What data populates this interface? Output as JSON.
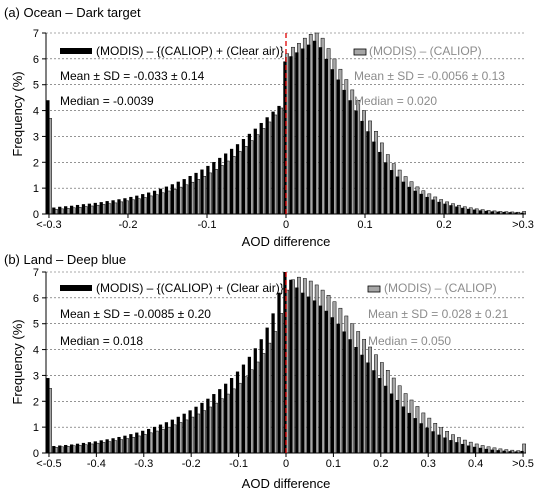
{
  "chart_data": [
    {
      "type": "bar",
      "title": "(a) Ocean – Dark target",
      "xlabel": "AOD difference",
      "ylabel": "Frequency (%)",
      "xlim": [
        -0.3,
        0.3
      ],
      "ylim": [
        0,
        7
      ],
      "yticks": [
        0,
        1,
        2,
        3,
        4,
        5,
        6,
        7
      ],
      "xtick_values": [
        -0.3,
        -0.2,
        -0.1,
        0,
        0.1,
        0.2,
        0.3
      ],
      "xtick_labels": [
        "<-0.3",
        "-0.2",
        "-0.1",
        "0",
        "0.1",
        "0.2",
        ">0.3"
      ],
      "bin_width": 0.0075,
      "grid": "horizontal dashed",
      "reference_line": 0,
      "series": [
        {
          "name": "(MODIS) – {(CALIOP) + (Clear air)}",
          "color": "#000000",
          "values": [
            4.4,
            0.25,
            0.28,
            0.3,
            0.32,
            0.35,
            0.38,
            0.4,
            0.43,
            0.46,
            0.5,
            0.53,
            0.57,
            0.61,
            0.66,
            0.71,
            0.77,
            0.83,
            0.9,
            0.98,
            1.06,
            1.15,
            1.25,
            1.35,
            1.47,
            1.59,
            1.72,
            1.86,
            2.01,
            2.17,
            2.34,
            2.52,
            2.7,
            2.9,
            3.1,
            3.3,
            3.52,
            3.74,
            3.96,
            4.18,
            5.9,
            6.1,
            6.25,
            6.4,
            6.55,
            6.7,
            6.45,
            6.0,
            5.6,
            5.2,
            4.8,
            4.4,
            4.0,
            3.6,
            3.2,
            2.8,
            2.4,
            2.0,
            1.7,
            1.45,
            1.25,
            1.05,
            0.9,
            0.78,
            0.66,
            0.56,
            0.47,
            0.4,
            0.34,
            0.29,
            0.24,
            0.2,
            0.17,
            0.14,
            0.12,
            0.1,
            0.09,
            0.08,
            0.07,
            0.06,
            0.05
          ]
        },
        {
          "name": "(MODIS) – (CALIOP)",
          "color": "#a6a6a6",
          "values": [
            3.7,
            0.18,
            0.2,
            0.22,
            0.24,
            0.26,
            0.29,
            0.31,
            0.34,
            0.37,
            0.4,
            0.43,
            0.47,
            0.51,
            0.55,
            0.59,
            0.64,
            0.7,
            0.75,
            0.82,
            0.89,
            0.96,
            1.04,
            1.13,
            1.23,
            1.34,
            1.46,
            1.59,
            1.73,
            1.88,
            2.05,
            2.23,
            2.42,
            2.62,
            2.84,
            3.07,
            3.31,
            3.56,
            3.83,
            4.1,
            6.2,
            6.45,
            6.6,
            6.8,
            6.95,
            7.05,
            6.8,
            6.4,
            6.0,
            5.6,
            5.2,
            4.8,
            4.4,
            4.0,
            3.6,
            3.2,
            2.75,
            2.3,
            1.95,
            1.7,
            1.45,
            1.25,
            1.05,
            0.9,
            0.78,
            0.66,
            0.56,
            0.47,
            0.4,
            0.34,
            0.28,
            0.24,
            0.2,
            0.17,
            0.14,
            0.12,
            0.1,
            0.09,
            0.08,
            0.07,
            0.1
          ]
        }
      ],
      "annotations": {
        "black": [
          "Mean ± SD = -0.033 ± 0.14",
          "Median =  -0.0039"
        ],
        "gray": [
          "Mean ± SD = -0.0056 ± 0.13",
          "Median =  0.020"
        ]
      }
    },
    {
      "type": "bar",
      "title": "(b) Land – Deep blue",
      "xlabel": "AOD difference",
      "ylabel": "Frequency (%)",
      "xlim": [
        -0.5,
        0.5
      ],
      "ylim": [
        0,
        7
      ],
      "yticks": [
        0,
        1,
        2,
        3,
        4,
        5,
        6,
        7
      ],
      "xtick_values": [
        -0.5,
        -0.4,
        -0.3,
        -0.2,
        -0.1,
        0,
        0.1,
        0.2,
        0.3,
        0.4,
        0.5
      ],
      "xtick_labels": [
        "<-0.5",
        "-0.4",
        "-0.3",
        "-0.2",
        "-0.1",
        "0",
        "0.1",
        "0.2",
        "0.3",
        "0.4",
        ">0.5"
      ],
      "bin_width": 0.0125,
      "grid": "horizontal dashed",
      "reference_line": 0,
      "series": [
        {
          "name": "(MODIS) – {(CALIOP) + (Clear air)}",
          "color": "#000000",
          "values": [
            2.9,
            0.27,
            0.29,
            0.31,
            0.33,
            0.36,
            0.39,
            0.42,
            0.45,
            0.49,
            0.53,
            0.57,
            0.62,
            0.67,
            0.73,
            0.79,
            0.86,
            0.93,
            1.01,
            1.1,
            1.19,
            1.29,
            1.4,
            1.52,
            1.65,
            1.79,
            1.94,
            2.1,
            2.28,
            2.47,
            2.68,
            2.9,
            3.15,
            3.42,
            3.72,
            4.05,
            4.4,
            4.85,
            5.4,
            6.2,
            7.05,
            6.7,
            6.4,
            6.2,
            6.05,
            5.9,
            5.7,
            5.5,
            5.25,
            5.0,
            4.7,
            4.4,
            4.1,
            3.8,
            3.5,
            3.2,
            2.9,
            2.6,
            2.3,
            2.05,
            1.8,
            1.55,
            1.35,
            1.15,
            0.98,
            0.84,
            0.71,
            0.6,
            0.5,
            0.42,
            0.35,
            0.29,
            0.24,
            0.2,
            0.16,
            0.13,
            0.11,
            0.09,
            0.07,
            0.06,
            0.08
          ]
        },
        {
          "name": "(MODIS) – (CALIOP)",
          "color": "#a6a6a6",
          "values": [
            2.5,
            0.22,
            0.24,
            0.26,
            0.28,
            0.3,
            0.32,
            0.35,
            0.38,
            0.41,
            0.44,
            0.48,
            0.52,
            0.56,
            0.61,
            0.66,
            0.72,
            0.78,
            0.85,
            0.92,
            1.0,
            1.09,
            1.18,
            1.28,
            1.39,
            1.51,
            1.64,
            1.78,
            1.93,
            2.1,
            2.28,
            2.48,
            2.7,
            2.95,
            3.22,
            3.52,
            3.85,
            4.25,
            4.7,
            5.4,
            6.3,
            6.7,
            6.8,
            6.75,
            6.65,
            6.5,
            6.3,
            6.1,
            5.85,
            5.6,
            5.3,
            5.0,
            4.7,
            4.4,
            4.1,
            3.8,
            3.5,
            3.2,
            2.9,
            2.6,
            2.3,
            2.05,
            1.8,
            1.55,
            1.35,
            1.15,
            0.98,
            0.84,
            0.71,
            0.6,
            0.5,
            0.42,
            0.35,
            0.29,
            0.24,
            0.2,
            0.16,
            0.13,
            0.11,
            0.09,
            0.35
          ]
        }
      ],
      "annotations": {
        "black": [
          "Mean ± SD = -0.0085 ± 0.20",
          "Median =  0.018"
        ],
        "gray": [
          "Mean ± SD = 0.028 ± 0.21",
          "Median =  0.050"
        ]
      }
    }
  ]
}
